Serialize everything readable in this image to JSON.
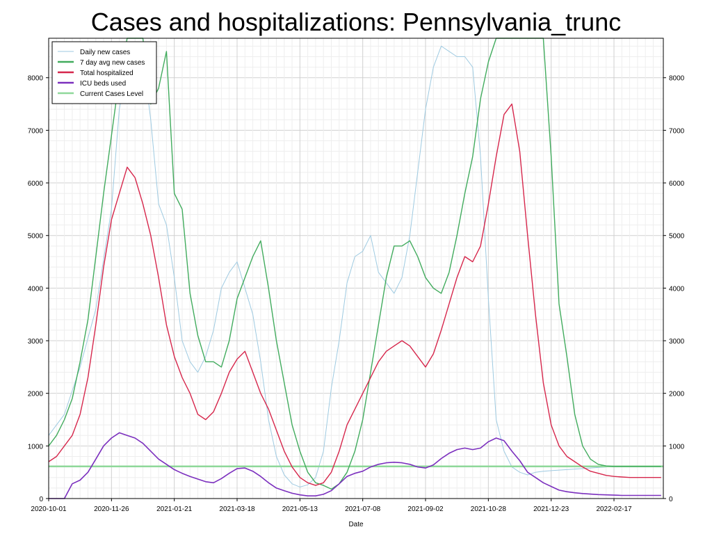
{
  "chart_data": {
    "type": "line",
    "title": "Cases and hospitalizations: Pennsylvania_trunc",
    "xlabel": "Date",
    "ylabel": "",
    "ylim": [
      0,
      8750
    ],
    "yticks": [
      0,
      1000,
      2000,
      3000,
      4000,
      5000,
      6000,
      7000,
      8000
    ],
    "xticks": [
      "2020-10-01",
      "2020-11-26",
      "2021-01-21",
      "2021-03-18",
      "2021-05-13",
      "2021-07-08",
      "2021-09-02",
      "2021-10-28",
      "2021-12-23",
      "2022-02-17"
    ],
    "x_start": "2020-10-01",
    "x_end_day": 548,
    "legend_position": "top-left",
    "grid": true,
    "current_cases_level": 610,
    "series": [
      {
        "name": "Daily new cases",
        "color": "#9ecae1",
        "x_days": [
          0,
          14,
          28,
          42,
          56,
          63,
          70,
          77,
          84,
          91,
          98,
          105,
          112,
          119,
          126,
          133,
          140,
          147,
          154,
          161,
          168,
          175,
          182,
          189,
          196,
          203,
          210,
          217,
          224,
          231,
          238,
          245,
          252,
          259,
          266,
          273,
          280,
          287,
          294,
          301,
          308,
          315,
          322,
          329,
          336,
          343,
          350,
          357,
          364,
          371,
          378,
          385,
          392,
          399,
          406,
          413,
          420,
          427,
          434,
          441,
          448,
          455,
          462,
          469,
          476,
          483,
          490,
          497,
          504,
          511,
          518,
          525,
          532,
          539,
          546
        ],
        "values": [
          1200,
          1600,
          2500,
          3600,
          5500,
          7400,
          8200,
          8400,
          8400,
          7200,
          5600,
          5200,
          4200,
          3000,
          2600,
          2400,
          2700,
          3200,
          4000,
          4300,
          4500,
          4000,
          3500,
          2600,
          1500,
          800,
          450,
          280,
          220,
          260,
          400,
          900,
          2100,
          3000,
          4100,
          4600,
          4700,
          5000,
          4300,
          4100,
          3900,
          4200,
          5000,
          6200,
          7400,
          8200,
          8600,
          8500,
          8400,
          8400,
          8200,
          6500,
          3800,
          1500,
          900,
          600,
          500,
          450,
          500,
          520,
          530,
          540,
          550,
          560,
          570,
          580,
          590,
          600,
          610,
          620,
          620,
          620,
          620,
          620,
          620
        ]
      },
      {
        "name": "7 day avg new cases",
        "color": "#41ab5d",
        "x_days": [
          0,
          7,
          14,
          21,
          28,
          35,
          42,
          49,
          56,
          63,
          70,
          77,
          84,
          91,
          98,
          105,
          112,
          119,
          126,
          133,
          140,
          147,
          154,
          161,
          168,
          175,
          182,
          189,
          196,
          203,
          210,
          217,
          224,
          231,
          238,
          245,
          252,
          259,
          266,
          273,
          280,
          287,
          294,
          301,
          308,
          315,
          322,
          329,
          336,
          343,
          350,
          357,
          364,
          371,
          378,
          385,
          392,
          399,
          406,
          413,
          420,
          427,
          434,
          441,
          448,
          455,
          462,
          469,
          476,
          483,
          490,
          497,
          504,
          511,
          518,
          525,
          532,
          539,
          546
        ],
        "values": [
          1000,
          1200,
          1500,
          1900,
          2600,
          3400,
          4600,
          5800,
          6900,
          8000,
          8750,
          8750,
          8750,
          7500,
          7800,
          8500,
          5800,
          5500,
          3900,
          3100,
          2600,
          2600,
          2500,
          3000,
          3800,
          4200,
          4600,
          4900,
          4000,
          3000,
          2200,
          1400,
          900,
          500,
          300,
          250,
          180,
          280,
          500,
          900,
          1500,
          2400,
          3300,
          4200,
          4800,
          4800,
          4900,
          4600,
          4200,
          4000,
          3900,
          4300,
          5000,
          5800,
          6500,
          7600,
          8300,
          8750,
          8750,
          8750,
          8750,
          8750,
          8750,
          8750,
          6500,
          3700,
          2700,
          1600,
          1000,
          750,
          650,
          620,
          610,
          610,
          610,
          610,
          610,
          610,
          610
        ]
      },
      {
        "name": "Total hospitalized",
        "color": "#d6264b",
        "x_days": [
          0,
          7,
          14,
          21,
          28,
          35,
          42,
          49,
          56,
          63,
          70,
          77,
          84,
          91,
          98,
          105,
          112,
          119,
          126,
          133,
          140,
          147,
          154,
          161,
          168,
          175,
          182,
          189,
          196,
          203,
          210,
          217,
          224,
          231,
          238,
          245,
          252,
          259,
          266,
          273,
          280,
          287,
          294,
          301,
          308,
          315,
          322,
          329,
          336,
          343,
          350,
          357,
          364,
          371,
          378,
          385,
          392,
          399,
          406,
          413,
          420,
          427,
          434,
          441,
          448,
          455,
          462,
          469,
          476,
          483,
          490,
          497,
          504,
          511,
          518,
          525,
          532,
          539,
          546
        ],
        "values": [
          700,
          800,
          1000,
          1200,
          1600,
          2300,
          3300,
          4400,
          5300,
          5800,
          6300,
          6100,
          5600,
          5000,
          4200,
          3300,
          2700,
          2300,
          2000,
          1600,
          1500,
          1650,
          2000,
          2400,
          2650,
          2800,
          2400,
          2000,
          1700,
          1300,
          900,
          600,
          400,
          300,
          250,
          300,
          500,
          900,
          1400,
          1700,
          2000,
          2300,
          2600,
          2800,
          2900,
          3000,
          2900,
          2700,
          2500,
          2750,
          3200,
          3700,
          4200,
          4600,
          4500,
          4800,
          5600,
          6500,
          7300,
          7500,
          6600,
          5000,
          3500,
          2200,
          1400,
          1000,
          800,
          700,
          600,
          520,
          480,
          440,
          420,
          410,
          400,
          400,
          400,
          400,
          400
        ]
      },
      {
        "name": "ICU beds used",
        "color": "#7b2fbe",
        "x_days": [
          0,
          14,
          21,
          28,
          35,
          42,
          49,
          56,
          63,
          70,
          77,
          84,
          91,
          98,
          105,
          112,
          119,
          126,
          133,
          140,
          147,
          154,
          161,
          168,
          175,
          182,
          189,
          196,
          203,
          210,
          217,
          224,
          231,
          238,
          245,
          252,
          259,
          266,
          273,
          280,
          287,
          294,
          301,
          308,
          315,
          322,
          329,
          336,
          343,
          350,
          357,
          364,
          371,
          378,
          385,
          392,
          399,
          406,
          413,
          420,
          427,
          434,
          441,
          448,
          455,
          462,
          469,
          476,
          483,
          490,
          497,
          504,
          511,
          518,
          525,
          532,
          539,
          546
        ],
        "values": [
          0,
          0,
          280,
          350,
          500,
          750,
          1000,
          1150,
          1250,
          1200,
          1150,
          1050,
          900,
          750,
          650,
          550,
          480,
          420,
          370,
          320,
          300,
          380,
          480,
          570,
          580,
          520,
          420,
          300,
          200,
          150,
          100,
          70,
          50,
          50,
          80,
          150,
          280,
          420,
          480,
          520,
          600,
          650,
          680,
          690,
          680,
          650,
          600,
          580,
          640,
          760,
          860,
          930,
          960,
          930,
          960,
          1080,
          1150,
          1100,
          900,
          720,
          500,
          400,
          300,
          230,
          160,
          130,
          110,
          95,
          85,
          75,
          70,
          65,
          60,
          60,
          60,
          60,
          60,
          60
        ]
      },
      {
        "name": "Current Cases Level",
        "color": "#8fd89a",
        "x_days": [
          0,
          548
        ],
        "values": [
          610,
          610
        ]
      }
    ]
  }
}
